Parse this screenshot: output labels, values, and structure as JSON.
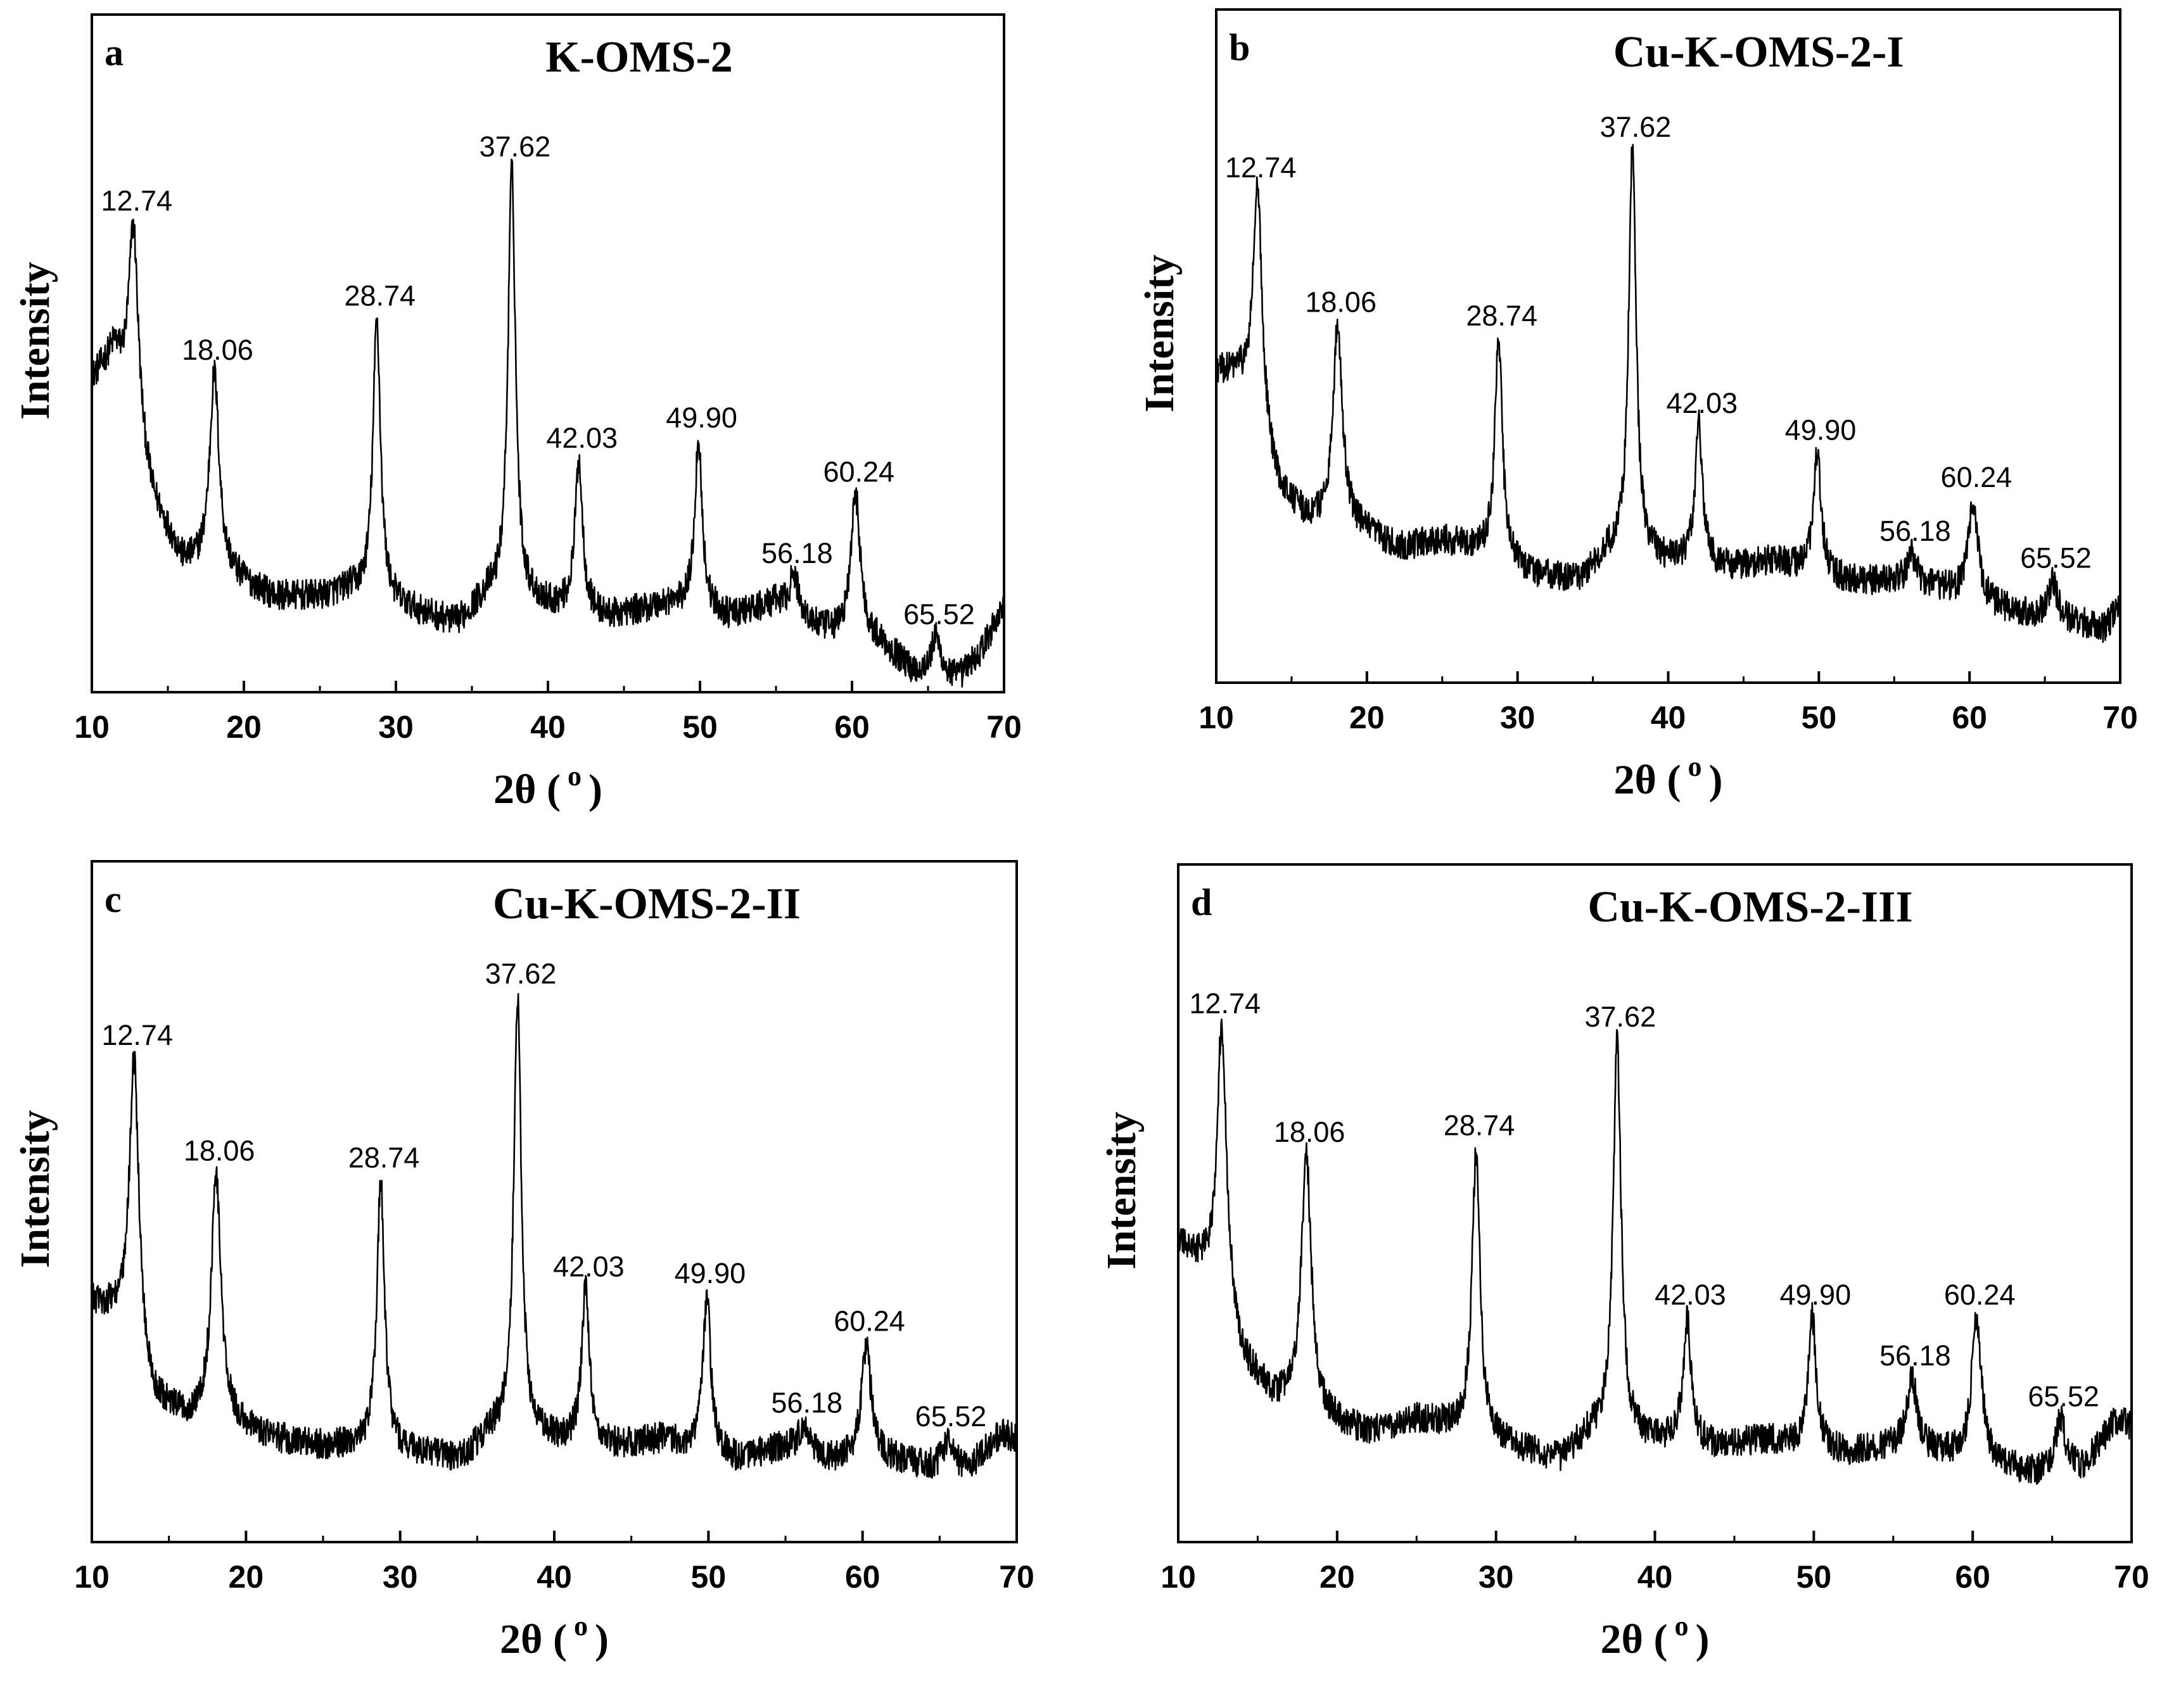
{
  "figure": {
    "description_panels": 4
  },
  "chart_data": [
    {
      "type": "line",
      "panel": "a",
      "title": "K-OMS-2",
      "xlabel": "2θ (",
      "xlabel_sup": "o",
      "xlabel_end": ")",
      "ylabel": "Intensity",
      "xlim": [
        10,
        70
      ],
      "ylim": [
        0,
        1
      ],
      "xticks": [
        10,
        20,
        30,
        40,
        50,
        60,
        70
      ],
      "grid": false,
      "peaks": [
        {
          "x": 12.74,
          "label": "12.74",
          "y": 0.69
        },
        {
          "x": 18.06,
          "label": "18.06",
          "y": 0.47
        },
        {
          "x": 28.74,
          "label": "28.74",
          "y": 0.55
        },
        {
          "x": 37.62,
          "label": "37.62",
          "y": 0.77
        },
        {
          "x": 42.03,
          "label": "42.03",
          "y": 0.34
        },
        {
          "x": 49.9,
          "label": "49.90",
          "y": 0.37
        },
        {
          "x": 56.18,
          "label": "56.18",
          "y": 0.17
        },
        {
          "x": 60.24,
          "label": "60.24",
          "y": 0.29
        },
        {
          "x": 65.52,
          "label": "65.52",
          "y": 0.08
        }
      ],
      "baseline": [
        [
          10,
          0.46
        ],
        [
          11.5,
          0.5
        ],
        [
          14,
          0.28
        ],
        [
          16,
          0.19
        ],
        [
          19,
          0.17
        ],
        [
          22,
          0.14
        ],
        [
          25,
          0.14
        ],
        [
          27,
          0.15
        ],
        [
          31,
          0.12
        ],
        [
          34,
          0.1
        ],
        [
          36,
          0.14
        ],
        [
          39,
          0.13
        ],
        [
          44,
          0.11
        ],
        [
          48,
          0.13
        ],
        [
          52,
          0.11
        ],
        [
          55,
          0.13
        ],
        [
          58,
          0.09
        ],
        [
          62,
          0.07
        ],
        [
          64,
          0.03
        ],
        [
          67,
          0.02
        ],
        [
          68.5,
          0.06
        ],
        [
          70,
          0.13
        ]
      ]
    },
    {
      "type": "line",
      "panel": "b",
      "title": "Cu-K-OMS-2-I",
      "xlabel": "2θ (",
      "xlabel_sup": "o",
      "xlabel_end": ")",
      "ylabel": "Intensity",
      "xlim": [
        10,
        70
      ],
      "ylim": [
        0,
        1
      ],
      "xticks": [
        10,
        20,
        30,
        40,
        50,
        60,
        70
      ],
      "grid": false,
      "peaks": [
        {
          "x": 12.74,
          "label": "12.74",
          "y": 0.73
        },
        {
          "x": 18.06,
          "label": "18.06",
          "y": 0.53
        },
        {
          "x": 28.74,
          "label": "28.74",
          "y": 0.51
        },
        {
          "x": 37.62,
          "label": "37.62",
          "y": 0.79
        },
        {
          "x": 42.03,
          "label": "42.03",
          "y": 0.38
        },
        {
          "x": 49.9,
          "label": "49.90",
          "y": 0.34
        },
        {
          "x": 56.18,
          "label": "56.18",
          "y": 0.19
        },
        {
          "x": 60.24,
          "label": "60.24",
          "y": 0.27
        },
        {
          "x": 65.52,
          "label": "65.52",
          "y": 0.15
        }
      ],
      "baseline": [
        [
          10,
          0.46
        ],
        [
          11.5,
          0.45
        ],
        [
          14,
          0.29
        ],
        [
          16,
          0.24
        ],
        [
          19,
          0.23
        ],
        [
          22,
          0.2
        ],
        [
          25,
          0.21
        ],
        [
          27,
          0.2
        ],
        [
          31,
          0.16
        ],
        [
          34,
          0.15
        ],
        [
          36,
          0.19
        ],
        [
          39,
          0.18
        ],
        [
          44,
          0.17
        ],
        [
          47,
          0.18
        ],
        [
          52,
          0.15
        ],
        [
          55,
          0.15
        ],
        [
          58,
          0.14
        ],
        [
          62,
          0.11
        ],
        [
          64,
          0.1
        ],
        [
          67,
          0.09
        ],
        [
          69,
          0.08
        ],
        [
          70,
          0.12
        ]
      ]
    },
    {
      "type": "line",
      "panel": "c",
      "title": "Cu-K-OMS-2-II",
      "xlabel": "2θ (",
      "xlabel_sup": "o",
      "xlabel_end": ")",
      "ylabel": "Intensity",
      "xlim": [
        10,
        70
      ],
      "ylim": [
        0,
        1
      ],
      "xticks": [
        10,
        20,
        30,
        40,
        50,
        60,
        70
      ],
      "grid": false,
      "peaks": [
        {
          "x": 12.74,
          "label": "12.74",
          "y": 0.71
        },
        {
          "x": 18.06,
          "label": "18.06",
          "y": 0.54
        },
        {
          "x": 28.74,
          "label": "28.74",
          "y": 0.53
        },
        {
          "x": 37.62,
          "label": "37.62",
          "y": 0.8
        },
        {
          "x": 42.03,
          "label": "42.03",
          "y": 0.37
        },
        {
          "x": 49.9,
          "label": "49.90",
          "y": 0.36
        },
        {
          "x": 56.18,
          "label": "56.18",
          "y": 0.17
        },
        {
          "x": 60.24,
          "label": "60.24",
          "y": 0.29
        },
        {
          "x": 65.52,
          "label": "65.52",
          "y": 0.15
        }
      ],
      "baseline": [
        [
          10,
          0.35
        ],
        [
          11.5,
          0.33
        ],
        [
          14,
          0.2
        ],
        [
          16,
          0.18
        ],
        [
          19,
          0.17
        ],
        [
          22,
          0.15
        ],
        [
          25,
          0.14
        ],
        [
          27,
          0.14
        ],
        [
          31,
          0.13
        ],
        [
          34,
          0.12
        ],
        [
          36,
          0.16
        ],
        [
          39,
          0.15
        ],
        [
          44,
          0.14
        ],
        [
          47,
          0.15
        ],
        [
          52,
          0.12
        ],
        [
          55,
          0.14
        ],
        [
          58,
          0.12
        ],
        [
          62,
          0.12
        ],
        [
          64,
          0.11
        ],
        [
          67,
          0.11
        ],
        [
          69,
          0.16
        ],
        [
          70,
          0.15
        ]
      ]
    },
    {
      "type": "line",
      "panel": "d",
      "title": "Cu-K-OMS-2-III",
      "xlabel": "2θ (",
      "xlabel_sup": "o",
      "xlabel_end": ")",
      "ylabel": "Intensity",
      "xlim": [
        10,
        70
      ],
      "ylim": [
        0,
        1
      ],
      "xticks": [
        10,
        20,
        30,
        40,
        50,
        60,
        70
      ],
      "grid": false,
      "peaks": [
        {
          "x": 12.74,
          "label": "12.74",
          "y": 0.76
        },
        {
          "x": 18.06,
          "label": "18.06",
          "y": 0.57
        },
        {
          "x": 28.74,
          "label": "28.74",
          "y": 0.58
        },
        {
          "x": 37.62,
          "label": "37.62",
          "y": 0.74
        },
        {
          "x": 42.03,
          "label": "42.03",
          "y": 0.33
        },
        {
          "x": 49.9,
          "label": "49.90",
          "y": 0.33
        },
        {
          "x": 56.18,
          "label": "56.18",
          "y": 0.24
        },
        {
          "x": 60.24,
          "label": "60.24",
          "y": 0.33
        },
        {
          "x": 65.52,
          "label": "65.52",
          "y": 0.18
        }
      ],
      "baseline": [
        [
          10,
          0.44
        ],
        [
          11.5,
          0.4
        ],
        [
          14,
          0.26
        ],
        [
          16,
          0.21
        ],
        [
          19,
          0.18
        ],
        [
          22,
          0.16
        ],
        [
          25,
          0.18
        ],
        [
          27,
          0.17
        ],
        [
          31,
          0.14
        ],
        [
          34,
          0.12
        ],
        [
          36,
          0.16
        ],
        [
          39,
          0.15
        ],
        [
          44,
          0.14
        ],
        [
          47,
          0.15
        ],
        [
          52,
          0.13
        ],
        [
          55,
          0.14
        ],
        [
          58,
          0.13
        ],
        [
          62,
          0.11
        ],
        [
          64,
          0.1
        ],
        [
          67,
          0.11
        ],
        [
          69,
          0.18
        ],
        [
          70,
          0.17
        ]
      ]
    }
  ]
}
